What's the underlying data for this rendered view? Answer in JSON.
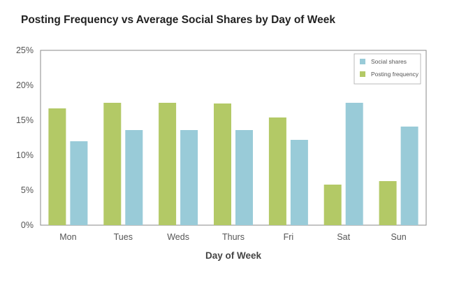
{
  "chart_data": {
    "type": "bar",
    "title": "Posting Frequency vs Average Social Shares by Day of Week",
    "xlabel": "Day of Week",
    "ylabel": "",
    "categories": [
      "Mon",
      "Tues",
      "Weds",
      "Thurs",
      "Fri",
      "Sat",
      "Sun"
    ],
    "series": [
      {
        "name": "Posting frequency",
        "color": "#b3c966",
        "values": [
          16.7,
          17.5,
          17.5,
          17.4,
          15.4,
          5.8,
          6.3
        ]
      },
      {
        "name": "Social shares",
        "color": "#99cbd8",
        "values": [
          12.0,
          13.6,
          13.6,
          13.6,
          12.2,
          17.5,
          14.1
        ]
      }
    ],
    "yticks": [
      "0%",
      "5%",
      "10%",
      "15%",
      "20%",
      "25%"
    ],
    "ylim": [
      0,
      25
    ],
    "grid": false,
    "legend": {
      "position": "top-right",
      "entries": [
        {
          "label": "Social shares",
          "color": "#99cbd8"
        },
        {
          "label": "Posting frequency",
          "color": "#b3c966"
        }
      ]
    }
  }
}
